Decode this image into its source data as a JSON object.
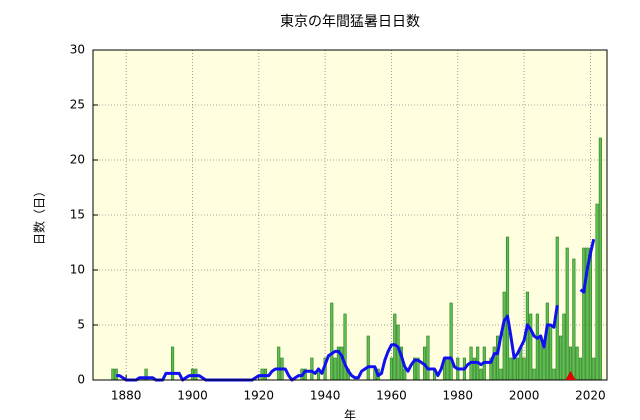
{
  "chart_data": {
    "type": "bar",
    "title": "東京の年間猛暑日日数",
    "xlabel": "年",
    "ylabel": "日数（日）",
    "x": [
      1875,
      1876,
      1877,
      1878,
      1879,
      1880,
      1881,
      1882,
      1883,
      1884,
      1885,
      1886,
      1887,
      1888,
      1889,
      1890,
      1891,
      1892,
      1893,
      1894,
      1895,
      1896,
      1897,
      1898,
      1899,
      1900,
      1901,
      1902,
      1903,
      1904,
      1905,
      1906,
      1907,
      1908,
      1909,
      1910,
      1911,
      1912,
      1913,
      1914,
      1915,
      1916,
      1917,
      1918,
      1919,
      1920,
      1921,
      1922,
      1923,
      1924,
      1925,
      1926,
      1927,
      1928,
      1929,
      1930,
      1931,
      1932,
      1933,
      1934,
      1935,
      1936,
      1937,
      1938,
      1939,
      1940,
      1941,
      1942,
      1943,
      1944,
      1945,
      1946,
      1947,
      1948,
      1949,
      1950,
      1951,
      1952,
      1953,
      1954,
      1955,
      1956,
      1957,
      1958,
      1959,
      1960,
      1961,
      1962,
      1963,
      1964,
      1965,
      1966,
      1967,
      1968,
      1969,
      1970,
      1971,
      1972,
      1973,
      1974,
      1975,
      1976,
      1977,
      1978,
      1979,
      1980,
      1981,
      1982,
      1983,
      1984,
      1985,
      1986,
      1987,
      1988,
      1989,
      1990,
      1991,
      1992,
      1993,
      1994,
      1995,
      1996,
      1997,
      1998,
      1999,
      2000,
      2001,
      2002,
      2003,
      2004,
      2005,
      2006,
      2007,
      2008,
      2009,
      2010,
      2011,
      2012,
      2013,
      2014,
      2015,
      2016,
      2017,
      2018,
      2019,
      2020,
      2021,
      2022,
      2023
    ],
    "series": [
      {
        "type": "bar",
        "color": "#5cc04c",
        "values": [
          0,
          1,
          1,
          0,
          0,
          0,
          0,
          0,
          0,
          0,
          0,
          1,
          0,
          0,
          0,
          0,
          0,
          0,
          0,
          3,
          0,
          0,
          0,
          0,
          0,
          1,
          1,
          0,
          0,
          0,
          0,
          0,
          0,
          0,
          0,
          0,
          0,
          0,
          0,
          0,
          0,
          0,
          0,
          0,
          0,
          0,
          1,
          1,
          0,
          0,
          0,
          3,
          2,
          0,
          0,
          0,
          0,
          0,
          1,
          1,
          0,
          2,
          0,
          1,
          0,
          2,
          0,
          7,
          2,
          3,
          3,
          6,
          1,
          0,
          0,
          0,
          0,
          0,
          4,
          0,
          1,
          1,
          0,
          0,
          0,
          2,
          6,
          5,
          3,
          1,
          0,
          0,
          2,
          2,
          0,
          3,
          4,
          0,
          1,
          0,
          0,
          2,
          2,
          7,
          0,
          2,
          0,
          2,
          0,
          3,
          2,
          3,
          1,
          3,
          0,
          2,
          3,
          4,
          1,
          8,
          13,
          2,
          2,
          2,
          3,
          2,
          8,
          6,
          1,
          6,
          4,
          3,
          7,
          5,
          1,
          13,
          4,
          6,
          12,
          3,
          11,
          3,
          2,
          12,
          12,
          12,
          2,
          16,
          22
        ]
      },
      {
        "type": "line",
        "color": "#1010f0",
        "values": [
          null,
          null,
          0.4,
          0.4,
          0.2,
          0,
          0,
          0,
          0,
          0.2,
          0.2,
          0.2,
          0.2,
          0.2,
          0,
          0,
          0,
          0.6,
          0.6,
          0.6,
          0.6,
          0.6,
          0,
          0.2,
          0.4,
          0.4,
          0.4,
          0.4,
          0.2,
          0,
          0,
          0,
          0,
          0,
          0,
          0,
          0,
          0,
          0,
          0,
          0,
          0,
          0,
          0,
          0.2,
          0.4,
          0.4,
          0.4,
          0.4,
          0.8,
          1,
          1,
          1,
          1,
          0.4,
          0,
          0.2,
          0.4,
          0.4,
          0.8,
          0.8,
          0.8,
          0.6,
          1,
          0.6,
          1.4,
          2.2,
          2.4,
          2.6,
          2.6,
          2.2,
          1.4,
          0.8,
          0.4,
          0.2,
          0.2,
          0.8,
          1,
          1.2,
          1.2,
          1.2,
          0.4,
          0.6,
          1.8,
          2.6,
          3.2,
          3.2,
          3,
          2.2,
          1.2,
          0.8,
          1.4,
          1.8,
          1.8,
          1.6,
          1.4,
          1,
          1,
          1,
          0.4,
          1,
          2,
          2,
          2,
          1.2,
          1,
          1,
          1,
          1.4,
          1.6,
          1.6,
          1.6,
          1.4,
          1.6,
          1.6,
          1.6,
          2.4,
          2.4,
          4,
          5.4,
          5.8,
          4,
          2,
          2.4,
          3,
          3.6,
          5,
          4.6,
          4,
          3.8,
          4,
          3,
          5,
          5,
          4.8,
          6.8,
          null,
          null,
          null,
          null,
          null,
          null,
          8.2,
          8,
          10,
          11.5,
          12.8,
          null,
          null
        ]
      }
    ],
    "markers": [
      {
        "x": 2014,
        "color": "#e00000"
      }
    ],
    "xlim": [
      1870,
      2025
    ],
    "ylim": [
      0,
      30
    ],
    "xticks": [
      1880,
      1900,
      1920,
      1940,
      1960,
      1980,
      2000,
      2020
    ],
    "yticks": [
      0,
      5,
      10,
      15,
      20,
      25,
      30
    ],
    "grid": true,
    "background": "#ffffe0"
  }
}
